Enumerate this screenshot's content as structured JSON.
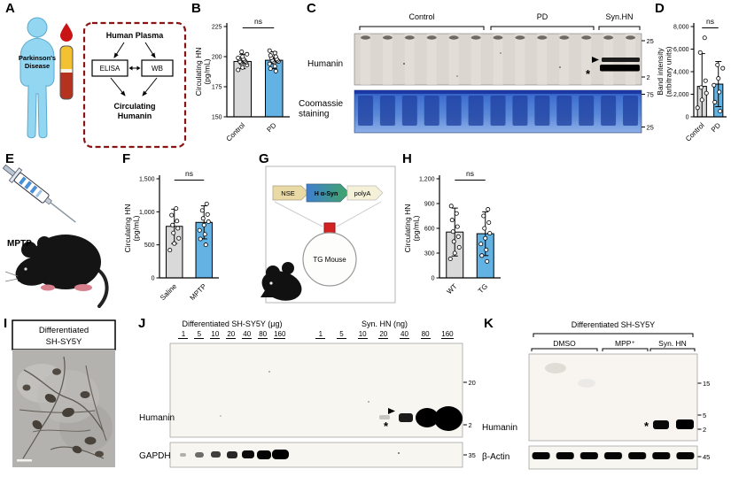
{
  "panels": {
    "A": {
      "label": "A",
      "patient_label_lines": [
        "Parkinson's",
        "Disease"
      ],
      "box_title": "Human Plasma",
      "method_elisa": "ELISA",
      "method_wb": "WB",
      "outcome_lines": [
        "Circulating",
        "Humanin"
      ]
    },
    "B": {
      "label": "B"
    },
    "C": {
      "label": "C",
      "groups": [
        "Control",
        "PD",
        "Syn.HN"
      ],
      "row1_label": "Humanin",
      "row2_label_lines": [
        "Coomassie",
        "staining"
      ],
      "humanin_markers": [
        "25",
        "2"
      ],
      "coomassie_markers": [
        "75",
        "25"
      ],
      "band_asterisk": "*"
    },
    "D": {
      "label": "D"
    },
    "E": {
      "label": "E",
      "injection_label": "MPTP"
    },
    "F": {
      "label": "F"
    },
    "G": {
      "label": "G",
      "construct_elements": [
        "NSE",
        "H α-Syn",
        "polyA"
      ],
      "mouse_label": "TG Mouse"
    },
    "H": {
      "label": "H"
    },
    "I": {
      "label": "I",
      "title_lines": [
        "Differentiated",
        "SH-SY5Y"
      ]
    },
    "J": {
      "label": "J",
      "group1_title": "Differentiated SH-SY5Y (μg)",
      "group2_title": "Syn. HN (ng)",
      "lanes1": [
        "1",
        "5",
        "10",
        "20",
        "40",
        "80",
        "160"
      ],
      "lanes2": [
        "1",
        "5",
        "10",
        "20",
        "40",
        "80",
        "160"
      ],
      "row1_label": "Humanin",
      "row2_label": "GAPDH",
      "humanin_markers": [
        "20",
        "2"
      ],
      "gapdh_marker": "35",
      "band_asterisk": "*"
    },
    "K": {
      "label": "K",
      "title": "Differentiated SH-SY5Y",
      "groups": [
        "DMSO",
        "MPP⁺",
        "Syn. HN"
      ],
      "row1_label": "Humanin",
      "row2_label": "β-Actin",
      "humanin_markers": [
        "15",
        "5",
        "2"
      ],
      "actin_marker": "45",
      "band_asterisk": "*"
    }
  },
  "chart_data": [
    {
      "panel": "B",
      "type": "bar",
      "categories": [
        "Control",
        "PD"
      ],
      "values": [
        196,
        197
      ],
      "errors": [
        6,
        7
      ],
      "points": [
        [
          189,
          191,
          193,
          194,
          195,
          195,
          196,
          196,
          197,
          198,
          198,
          199,
          200,
          202,
          204
        ],
        [
          188,
          190,
          192,
          194,
          195,
          196,
          196,
          197,
          197,
          198,
          199,
          200,
          201,
          203,
          205
        ]
      ],
      "ylim": [
        150,
        225
      ],
      "yticks": [
        150,
        175,
        200,
        225
      ],
      "ytick_labels": [
        "150",
        "175",
        "200",
        "225"
      ],
      "ylabel_lines": [
        "Circulating HN",
        "(pg/mL)"
      ],
      "annotation": "ns",
      "bar_colors": [
        "#d9d9d9",
        "#62b2e4"
      ],
      "margin_left": 36
    },
    {
      "panel": "D",
      "type": "bar",
      "categories": [
        "Control",
        "PD"
      ],
      "values": [
        2700,
        2900
      ],
      "errors": [
        2900,
        2000
      ],
      "points": [
        [
          800,
          1500,
          2100,
          2600,
          3200,
          5700,
          7000
        ],
        [
          500,
          1300,
          2200,
          2800,
          3400,
          4300,
          4600
        ]
      ],
      "ylim": [
        0,
        8000
      ],
      "yticks": [
        0,
        2000,
        4000,
        6000,
        8000
      ],
      "ytick_labels": [
        "0",
        "2,000",
        "4,000",
        "6,000",
        "8,000"
      ],
      "ylabel_lines": [
        "Band intensity",
        "(arbitrary units)"
      ],
      "annotation": "ns",
      "bar_colors": [
        "#d9d9d9",
        "#62b2e4"
      ],
      "margin_left": 42
    },
    {
      "panel": "F",
      "type": "bar",
      "categories": [
        "Saline",
        "MPTP"
      ],
      "values": [
        780,
        840
      ],
      "errors": [
        260,
        250
      ],
      "points": [
        [
          420,
          520,
          600,
          680,
          750,
          800,
          860,
          950,
          1050
        ],
        [
          500,
          590,
          660,
          720,
          800,
          850,
          900,
          960,
          1020,
          1120
        ]
      ],
      "ylim": [
        0,
        1500
      ],
      "yticks": [
        0,
        500,
        1000,
        1500
      ],
      "ytick_labels": [
        "0",
        "500",
        "1,000",
        "1,500"
      ],
      "ylabel_lines": [
        "Circulating HN",
        "(pg/mL)"
      ],
      "annotation": "ns",
      "bar_colors": [
        "#d9d9d9",
        "#62b2e4"
      ],
      "margin_left": 40
    },
    {
      "panel": "H",
      "type": "bar",
      "categories": [
        "WT",
        "TG"
      ],
      "values": [
        555,
        535
      ],
      "errors": [
        290,
        265
      ],
      "points": [
        [
          230,
          300,
          370,
          440,
          500,
          560,
          620,
          700,
          780,
          870
        ],
        [
          200,
          270,
          340,
          410,
          480,
          540,
          600,
          670,
          750,
          830
        ]
      ],
      "ylim": [
        0,
        1200
      ],
      "yticks": [
        0,
        300,
        600,
        900,
        1200
      ],
      "ytick_labels": [
        "0",
        "300",
        "600",
        "900",
        "1,200"
      ],
      "ylabel_lines": [
        "Circulating HN",
        "(pg/mL)"
      ],
      "annotation": "ns",
      "bar_colors": [
        "#d9d9d9",
        "#62b2e4"
      ],
      "margin_left": 40
    }
  ]
}
